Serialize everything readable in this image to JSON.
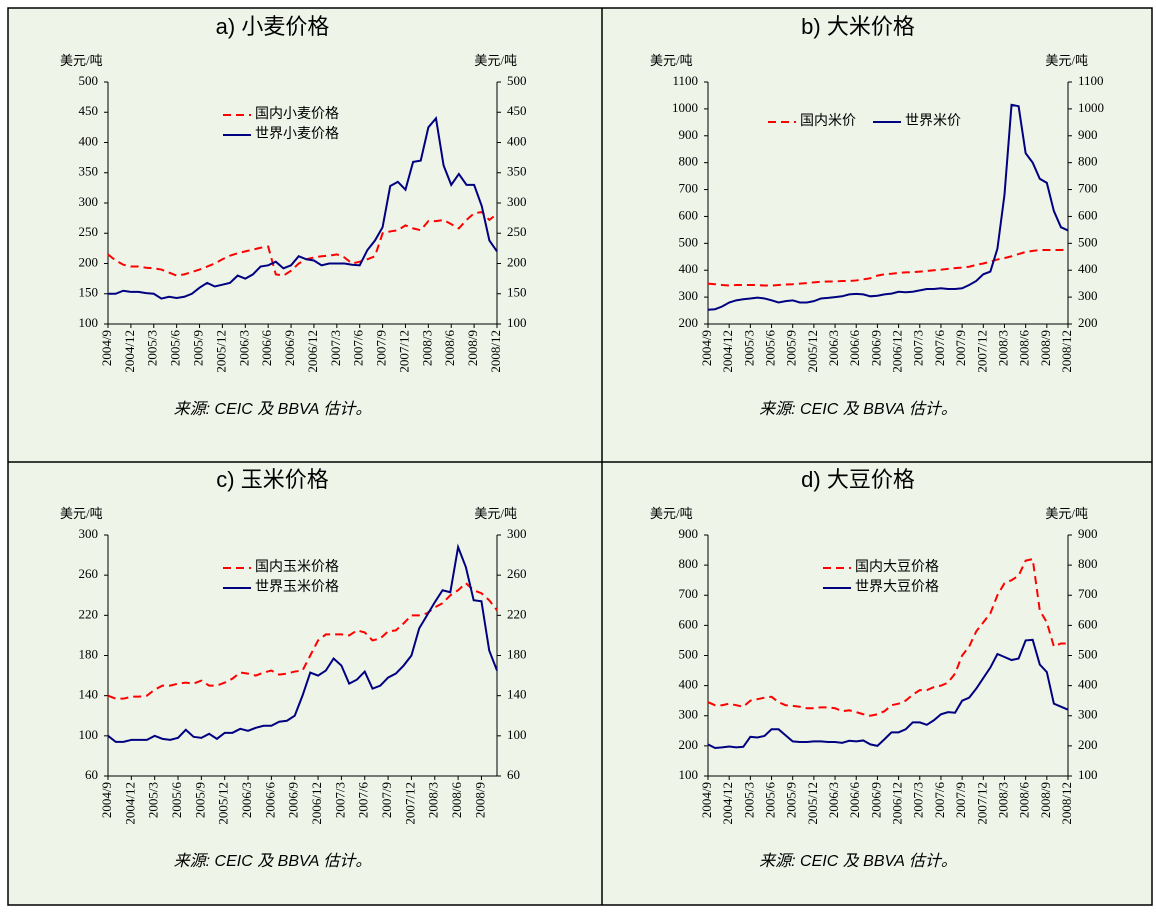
{
  "chart_data": [
    {
      "type": "line",
      "title": "a) 小麦价格",
      "y_label": "美元/吨",
      "y2_label": "美元/吨",
      "source": "来源: CEIC 及 BBVA 估计。",
      "categories": [
        "2004/9",
        null,
        null,
        "2004/12",
        null,
        null,
        "2005/3",
        null,
        null,
        "2005/6",
        null,
        null,
        "2005/9",
        null,
        null,
        "2005/12",
        null,
        null,
        "2006/3",
        null,
        null,
        "2006/6",
        null,
        null,
        "2006/9",
        null,
        null,
        "2006/12",
        null,
        null,
        "2007/3",
        null,
        null,
        "2007/6",
        null,
        null,
        "2007/9",
        null,
        null,
        "2007/12",
        null,
        null,
        "2008/3",
        null,
        null,
        "2008/6",
        null,
        null,
        "2008/9",
        null,
        null,
        "2008/12"
      ],
      "series": [
        {
          "name": "国内小麦价格",
          "color": "#ff0000",
          "style": "dashed",
          "values": [
            215,
            205,
            198,
            195,
            195,
            193,
            192,
            190,
            185,
            180,
            182,
            186,
            190,
            195,
            200,
            207,
            213,
            217,
            220,
            223,
            226,
            228,
            182,
            180,
            188,
            200,
            207,
            210,
            212,
            213,
            215,
            210,
            200,
            203,
            207,
            212,
            250,
            253,
            255,
            263,
            258,
            255,
            270,
            270,
            272,
            265,
            258,
            272,
            283,
            285,
            272,
            282
          ]
        },
        {
          "name": "世界小麦价格",
          "color": "#000080",
          "style": "solid",
          "values": [
            150,
            150,
            155,
            153,
            153,
            151,
            150,
            142,
            145,
            143,
            145,
            150,
            160,
            168,
            162,
            165,
            168,
            180,
            175,
            182,
            195,
            197,
            203,
            192,
            197,
            212,
            207,
            205,
            197,
            200,
            200,
            200,
            198,
            197,
            222,
            238,
            260,
            328,
            335,
            322,
            368,
            370,
            425,
            440,
            362,
            330,
            348,
            330,
            330,
            295,
            238,
            220
          ]
        }
      ],
      "ylim": [
        100,
        500
      ],
      "yticks": [
        100,
        150,
        200,
        250,
        300,
        350,
        400,
        450,
        500
      ],
      "y2lim": [
        100,
        500
      ],
      "y2ticks": [
        100,
        150,
        200,
        250,
        300,
        350,
        400,
        450,
        500
      ],
      "legend": "upper left",
      "legend_orientation": "vertical"
    },
    {
      "type": "line",
      "title": "b) 大米价格",
      "y_label": "美元/吨",
      "y2_label": "美元/吨",
      "source": "来源: CEIC 及 BBVA 估计。",
      "categories": [
        "2004/9",
        null,
        null,
        "2004/12",
        null,
        null,
        "2005/3",
        null,
        null,
        "2005/6",
        null,
        null,
        "2005/9",
        null,
        null,
        "2005/12",
        null,
        null,
        "2006/3",
        null,
        null,
        "2006/6",
        null,
        null,
        "2006/9",
        null,
        null,
        "2006/12",
        null,
        null,
        "2007/3",
        null,
        null,
        "2007/6",
        null,
        null,
        "2007/9",
        null,
        null,
        "2007/12",
        null,
        null,
        "2008/3",
        null,
        null,
        "2008/6",
        null,
        null,
        "2008/9",
        null,
        null,
        "2008/12"
      ],
      "series": [
        {
          "name": "国内米价",
          "color": "#ff0000",
          "style": "dashed",
          "values": [
            350,
            348,
            345,
            343,
            345,
            345,
            345,
            345,
            343,
            343,
            345,
            347,
            348,
            350,
            352,
            355,
            357,
            358,
            358,
            360,
            360,
            362,
            366,
            370,
            380,
            385,
            387,
            390,
            392,
            393,
            395,
            397,
            400,
            402,
            405,
            408,
            410,
            413,
            420,
            425,
            432,
            440,
            445,
            452,
            460,
            468,
            472,
            475,
            475,
            475,
            475,
            477
          ]
        },
        {
          "name": "世界米价",
          "color": "#000080",
          "style": "solid",
          "values": [
            253,
            255,
            265,
            280,
            288,
            292,
            295,
            298,
            295,
            288,
            280,
            285,
            288,
            280,
            280,
            285,
            295,
            297,
            300,
            303,
            310,
            312,
            310,
            303,
            305,
            310,
            313,
            320,
            318,
            320,
            325,
            330,
            330,
            333,
            330,
            330,
            333,
            345,
            360,
            385,
            395,
            480,
            680,
            1015,
            1010,
            835,
            800,
            740,
            725,
            620,
            560,
            548
          ]
        }
      ],
      "ylim": [
        200,
        1100
      ],
      "yticks": [
        200,
        300,
        400,
        500,
        600,
        700,
        800,
        900,
        1000,
        1100
      ],
      "y2lim": [
        200,
        1100
      ],
      "y2ticks": [
        200,
        300,
        400,
        500,
        600,
        700,
        800,
        900,
        1000,
        1100
      ],
      "legend": "upper left",
      "legend_orientation": "horizontal"
    },
    {
      "type": "line",
      "title": "c) 玉米价格",
      "y_label": "美元/吨",
      "y2_label": "美元/吨",
      "source": "来源: CEIC 及 BBVA 估计。",
      "categories": [
        "2004/9",
        null,
        null,
        "2004/12",
        null,
        null,
        "2005/3",
        null,
        null,
        "2005/6",
        null,
        null,
        "2005/9",
        null,
        null,
        "2005/12",
        null,
        null,
        "2006/3",
        null,
        null,
        "2006/6",
        null,
        null,
        "2006/9",
        null,
        null,
        "2006/12",
        null,
        null,
        "2007/3",
        null,
        null,
        "2007/6",
        null,
        null,
        "2007/9",
        null,
        null,
        "2007/12",
        null,
        null,
        "2008/3",
        null,
        null,
        "2008/6",
        null,
        null,
        "2008/9",
        null,
        null
      ],
      "series": [
        {
          "name": "国内玉米价格",
          "color": "#ff0000",
          "style": "dashed",
          "values": [
            140,
            137,
            137,
            139,
            139,
            140,
            146,
            150,
            150,
            152,
            153,
            152,
            155,
            150,
            150,
            153,
            157,
            163,
            162,
            160,
            163,
            165,
            161,
            162,
            164,
            165,
            180,
            195,
            201,
            201,
            201,
            200,
            205,
            203,
            195,
            197,
            204,
            205,
            212,
            220,
            220,
            222,
            228,
            232,
            240,
            245,
            252,
            245,
            242,
            235,
            225
          ]
        },
        {
          "name": "世界玉米价格",
          "color": "#000080",
          "style": "solid",
          "values": [
            100,
            94,
            94,
            96,
            96,
            96,
            100,
            97,
            96,
            98,
            106,
            99,
            98,
            102,
            97,
            103,
            103,
            107,
            105,
            108,
            110,
            110,
            114,
            115,
            120,
            140,
            163,
            160,
            165,
            177,
            170,
            152,
            156,
            164,
            147,
            150,
            158,
            162,
            170,
            180,
            207,
            220,
            233,
            245,
            243,
            288,
            268,
            235,
            234,
            185,
            165
          ]
        }
      ],
      "ylim": [
        60,
        300
      ],
      "yticks": [
        60,
        100,
        140,
        180,
        220,
        260,
        300
      ],
      "y2lim": [
        60,
        300
      ],
      "y2ticks": [
        60,
        100,
        140,
        180,
        220,
        260,
        300
      ],
      "legend": "upper left",
      "legend_orientation": "vertical"
    },
    {
      "type": "line",
      "title": "d) 大豆价格",
      "y_label": "美元/吨",
      "y2_label": "美元/吨",
      "source": "来源: CEIC 及 BBVA 估计。",
      "categories": [
        "2004/9",
        null,
        null,
        "2004/12",
        null,
        null,
        "2005/3",
        null,
        null,
        "2005/6",
        null,
        null,
        "2005/9",
        null,
        null,
        "2005/12",
        null,
        null,
        "2006/3",
        null,
        null,
        "2006/6",
        null,
        null,
        "2006/9",
        null,
        null,
        "2006/12",
        null,
        null,
        "2007/3",
        null,
        null,
        "2007/6",
        null,
        null,
        "2007/9",
        null,
        null,
        "2007/12",
        null,
        null,
        "2008/3",
        null,
        null,
        "2008/6",
        null,
        null,
        "2008/9",
        null,
        null,
        "2008/12"
      ],
      "series": [
        {
          "name": "国内大豆价格",
          "color": "#ff0000",
          "style": "dashed",
          "values": [
            345,
            335,
            335,
            340,
            335,
            330,
            350,
            355,
            360,
            363,
            345,
            335,
            333,
            330,
            325,
            325,
            328,
            328,
            325,
            315,
            318,
            312,
            305,
            300,
            305,
            315,
            335,
            340,
            350,
            370,
            385,
            385,
            395,
            400,
            410,
            440,
            500,
            530,
            580,
            610,
            640,
            700,
            740,
            750,
            765,
            815,
            820,
            650,
            610,
            530,
            540,
            540
          ]
        },
        {
          "name": "世界大豆价格",
          "color": "#000080",
          "style": "solid",
          "values": [
            205,
            193,
            195,
            198,
            195,
            197,
            230,
            228,
            233,
            255,
            255,
            235,
            215,
            213,
            213,
            215,
            215,
            213,
            213,
            210,
            217,
            215,
            218,
            205,
            200,
            222,
            245,
            245,
            255,
            278,
            278,
            270,
            285,
            305,
            312,
            310,
            350,
            360,
            390,
            425,
            460,
            505,
            495,
            485,
            490,
            550,
            552,
            470,
            445,
            340,
            330,
            320
          ]
        }
      ],
      "ylim": [
        100,
        900
      ],
      "yticks": [
        100,
        200,
        300,
        400,
        500,
        600,
        700,
        800,
        900
      ],
      "y2lim": [
        100,
        900
      ],
      "y2ticks": [
        100,
        200,
        300,
        400,
        500,
        600,
        700,
        800,
        900
      ],
      "legend": "upper left",
      "legend_orientation": "vertical"
    }
  ]
}
